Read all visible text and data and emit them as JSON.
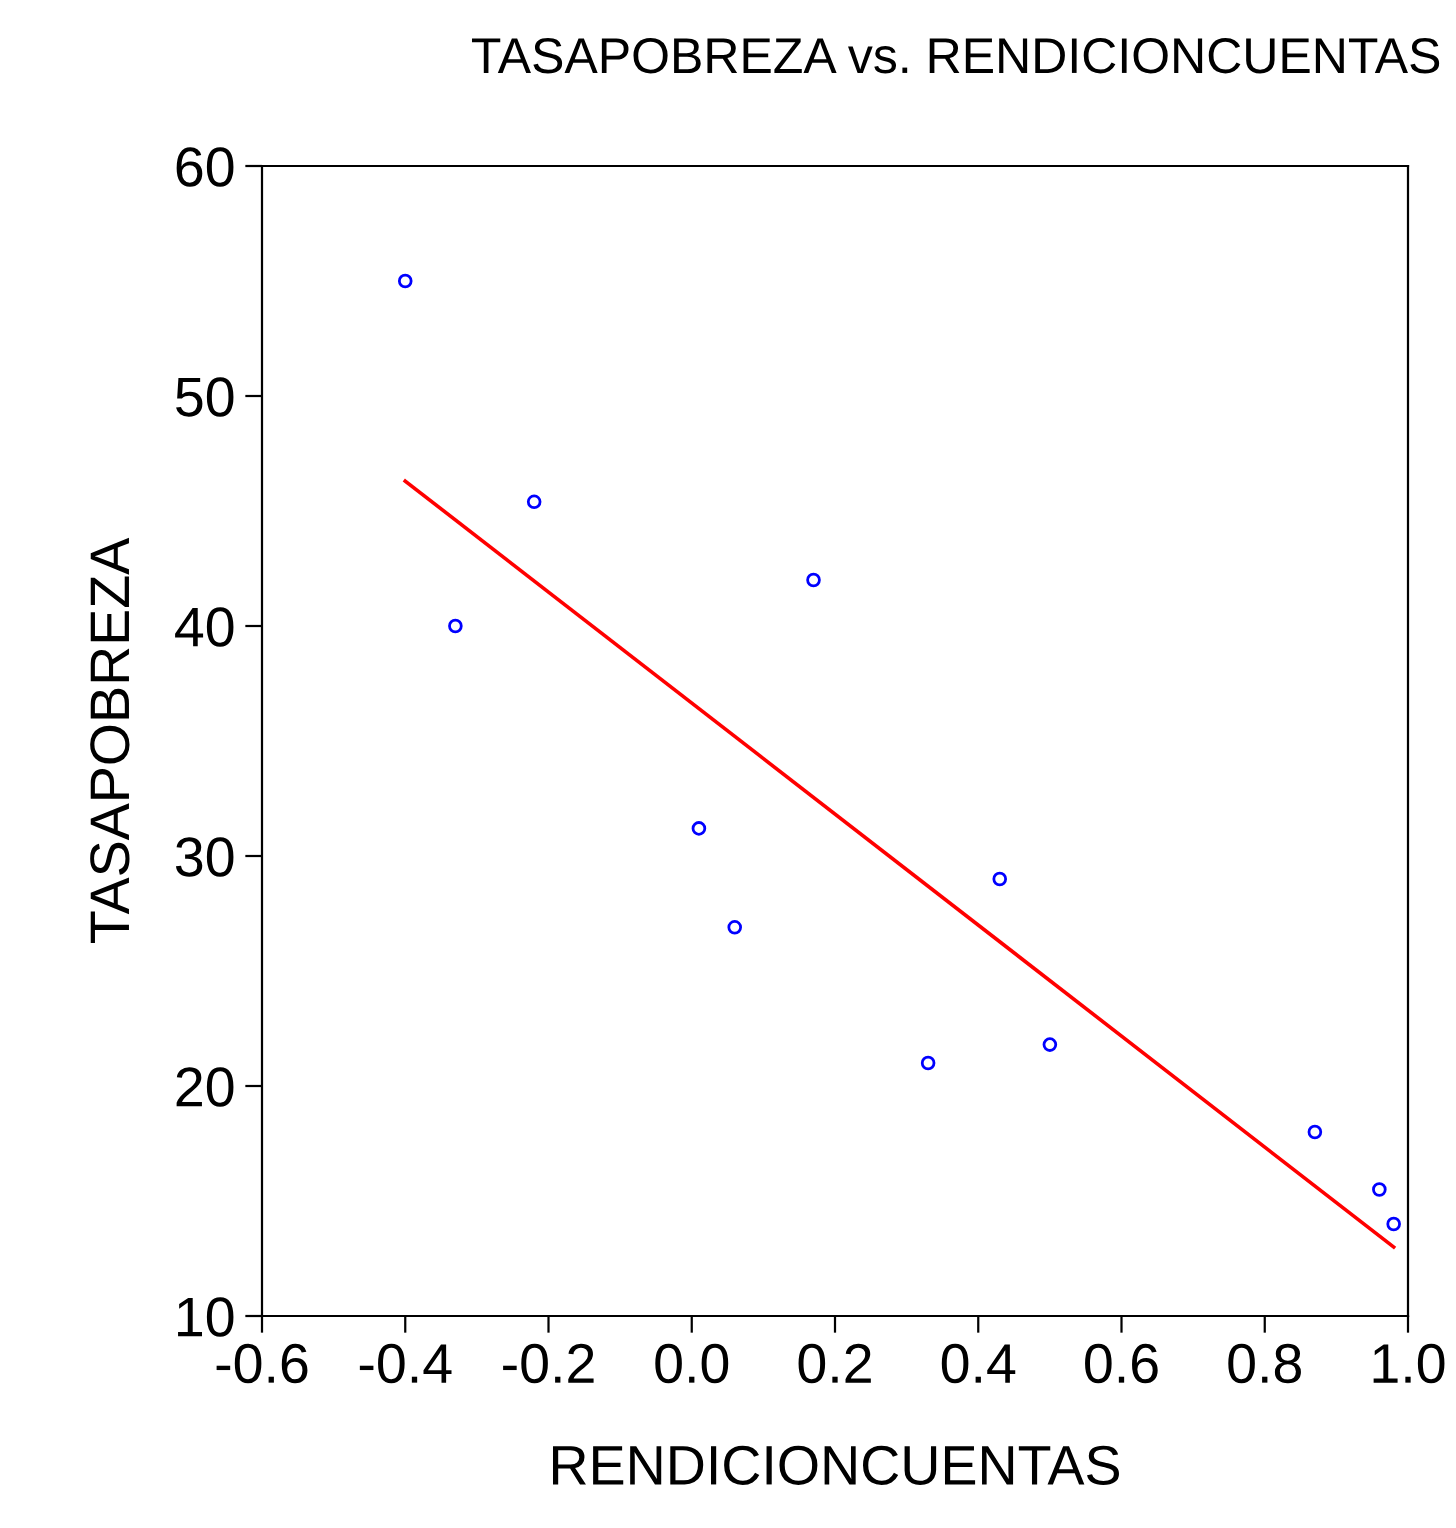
{
  "chart_data": {
    "type": "scatter",
    "title": "TASAPOBREZA vs. RENDICIONCUENTAS",
    "xlabel": "RENDICIONCUENTAS",
    "ylabel": "TASAPOBREZA",
    "xlim": [
      -0.6,
      1.0
    ],
    "xticks": [
      {
        "value": -0.6,
        "label": "-0.6"
      },
      {
        "value": -0.4,
        "label": "-0.4"
      },
      {
        "value": -0.2,
        "label": "-0.2"
      },
      {
        "value": 0.0,
        "label": "0.0"
      },
      {
        "value": 0.2,
        "label": "0.2"
      },
      {
        "value": 0.4,
        "label": "0.4"
      },
      {
        "value": 0.6,
        "label": "0.6"
      },
      {
        "value": 0.8,
        "label": "0.8"
      },
      {
        "value": 1.0,
        "label": "1.0"
      }
    ],
    "ylim": [
      10,
      60
    ],
    "yticks": [
      10,
      20,
      30,
      40,
      50,
      60
    ],
    "grid": false,
    "legend": false,
    "series": [
      {
        "color": "#0000ff",
        "marker": "circle",
        "x": [
          -0.4,
          -0.33,
          -0.22,
          0.01,
          0.06,
          0.17,
          0.33,
          0.43,
          0.5,
          0.87,
          0.96,
          0.98
        ],
        "values": [
          55.0,
          40.0,
          45.4,
          31.2,
          26.9,
          42.0,
          21.0,
          29.0,
          21.8,
          18.0,
          15.5,
          14.0
        ]
      },
      {
        "type": "line",
        "color": "#ff0000",
        "marker": "none",
        "line_style": "solid",
        "x": [
          -0.4,
          0.98
        ],
        "values": [
          46.3,
          13.0
        ]
      }
    ]
  }
}
